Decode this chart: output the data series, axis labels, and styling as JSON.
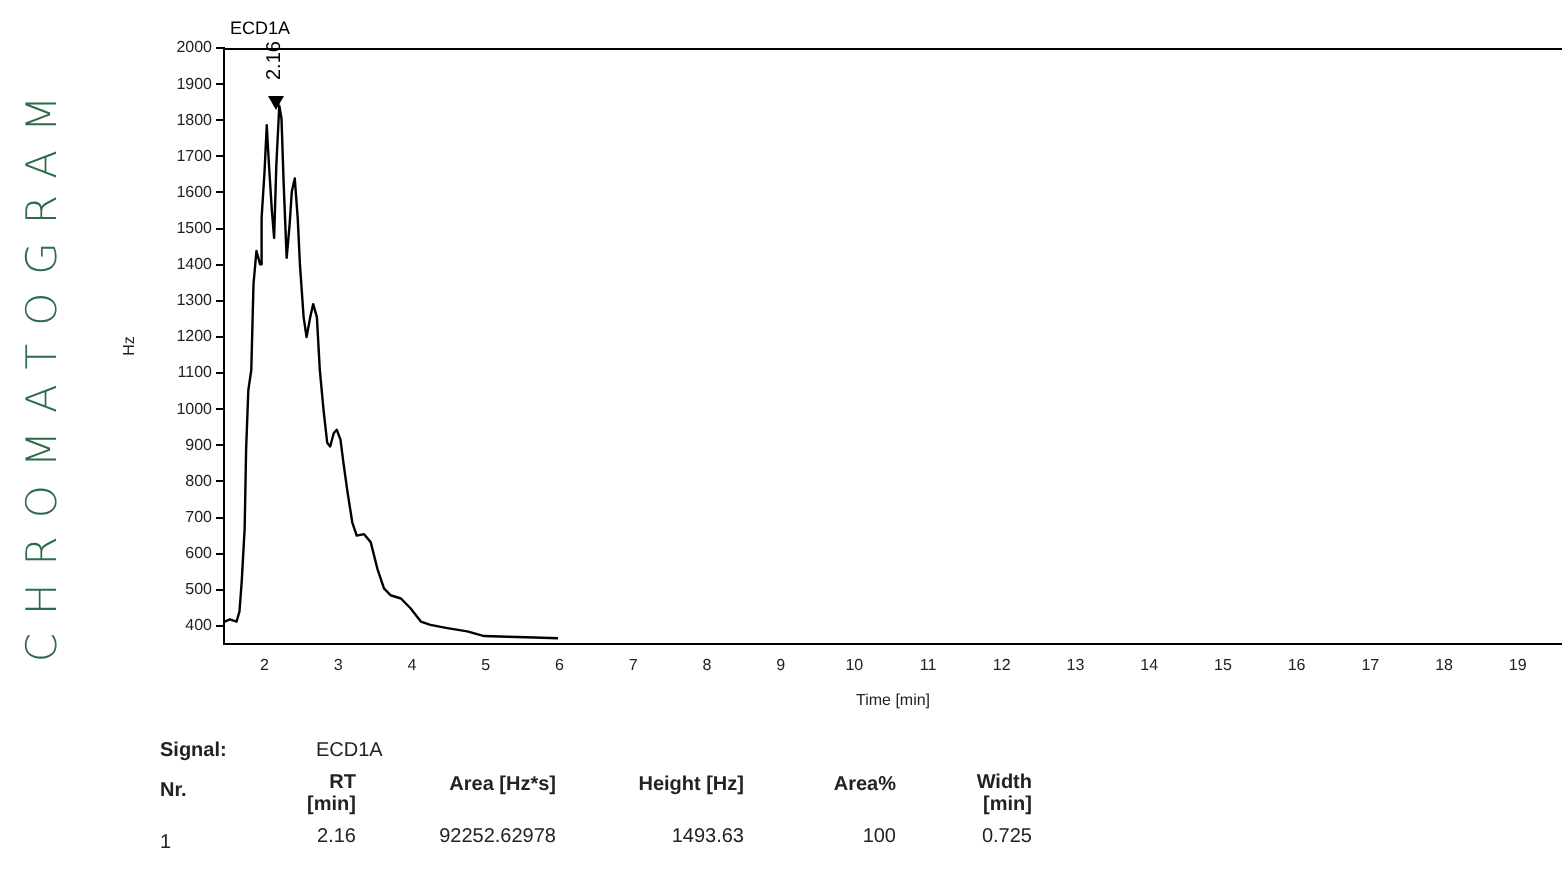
{
  "chart_data": {
    "type": "line",
    "title": "CHROMATOGRAM",
    "subtitle": "ECD1A",
    "xlabel": "Time [min]",
    "ylabel": "Hz",
    "x": [
      1.46,
      1.53,
      1.62,
      1.66,
      1.69,
      1.73,
      1.75,
      1.78,
      1.82,
      1.85,
      1.89,
      1.94,
      1.96,
      2.0,
      2.03,
      2.06,
      2.1,
      2.13,
      2.16,
      2.2,
      2.23,
      2.26,
      2.3,
      2.34,
      2.37,
      2.41,
      2.45,
      2.48,
      2.53,
      2.57,
      2.62,
      2.66,
      2.71,
      2.75,
      2.8,
      2.85,
      2.89,
      2.94,
      2.98,
      3.03,
      3.07,
      3.12,
      3.19,
      3.25,
      3.35,
      3.44,
      3.53,
      3.62,
      3.71,
      3.85,
      3.98,
      4.12,
      4.25,
      4.48,
      4.75,
      4.98,
      5.3,
      5.66,
      5.98
    ],
    "series": [
      {
        "color": "#000000",
        "values": [
          412,
          418,
          412,
          440,
          522,
          669,
          888,
          1053,
          1108,
          1346,
          1438,
          1401,
          1529,
          1658,
          1786,
          1676,
          1548,
          1474,
          1676,
          1840,
          1804,
          1621,
          1419,
          1511,
          1603,
          1639,
          1529,
          1401,
          1255,
          1200,
          1255,
          1291,
          1255,
          1108,
          998,
          907,
          897,
          934,
          943,
          916,
          852,
          778,
          687,
          650,
          654,
          632,
          559,
          504,
          485,
          476,
          449,
          412,
          403,
          394,
          385,
          372,
          370,
          368,
          366
        ]
      }
    ],
    "xlim": [
      1.45,
      19.6
    ],
    "xticks": [
      2,
      3,
      4,
      5,
      6,
      7,
      8,
      9,
      10,
      11,
      12,
      13,
      14,
      15,
      16,
      17,
      18,
      19
    ],
    "ylim": [
      350,
      2000
    ],
    "yticks": [
      400,
      500,
      600,
      700,
      800,
      900,
      1000,
      1100,
      1200,
      1300,
      1400,
      1500,
      1600,
      1700,
      1800,
      1900,
      2000
    ],
    "grid": false,
    "legend": false,
    "marker": "none",
    "line_style": "solid",
    "annotations": [
      {
        "text": "2.16",
        "x": 2.16,
        "y": 1860
      },
      "Signal:",
      "ECD1A",
      "Nr.",
      "RT [min]",
      "Area [Hz*s]",
      "Height [Hz]",
      "Area%",
      "Width [min]",
      "1",
      "2.16",
      "92252.62978",
      "1493.63",
      "100",
      "0.725"
    ]
  }
}
